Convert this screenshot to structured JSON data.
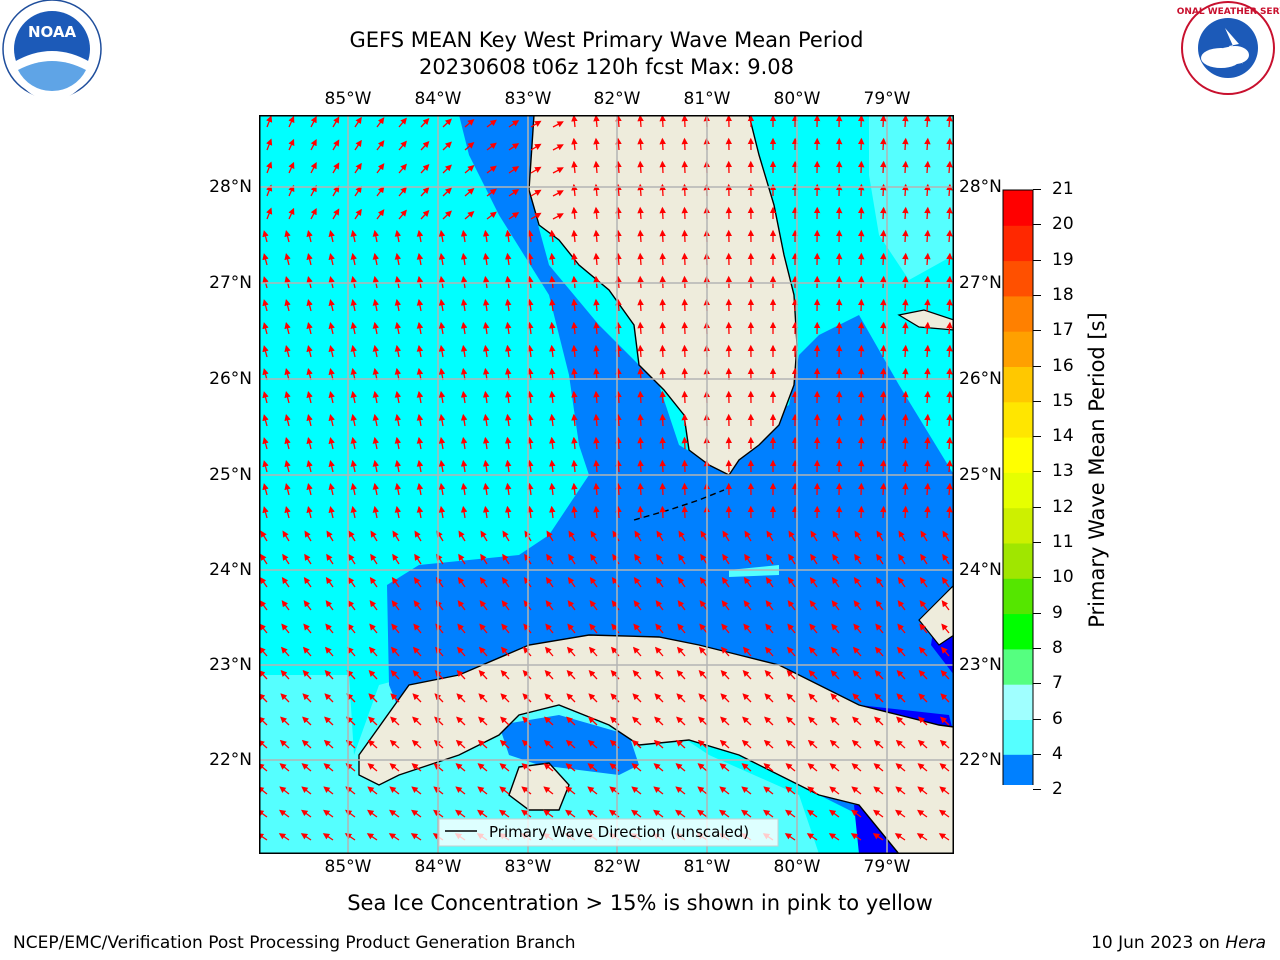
{
  "title": {
    "line1": "GEFS MEAN Key West Primary Wave Mean Period",
    "line2": "20230608 t06z 120h fcst   Max: 9.08"
  },
  "logos": {
    "left": "NOAA",
    "right": "NATIONAL WEATHER SERVICE"
  },
  "map": {
    "lon_labels": [
      "85°W",
      "84°W",
      "83°W",
      "82°W",
      "81°W",
      "80°W",
      "79°W"
    ],
    "lat_labels": [
      "28°N",
      "27°N",
      "26°N",
      "25°N",
      "24°N",
      "23°N",
      "22°N"
    ],
    "legend_text": "Primary Wave Direction (unscaled)",
    "colors": {
      "land": "#eeecdc",
      "cyan": "#00ffff",
      "light_cyan": "#55ffff",
      "blue": "#0080ff",
      "dark_blue": "#0000ff",
      "arrow": "#ff0000",
      "grid": "#b4b4b4"
    }
  },
  "colorbar": {
    "label": "Primary Wave Mean Period [s]",
    "ticks": [
      "2",
      "4",
      "6",
      "7",
      "8",
      "9",
      "10",
      "11",
      "12",
      "13",
      "14",
      "15",
      "16",
      "17",
      "18",
      "19",
      "20",
      "21"
    ],
    "colors": [
      "#0080ff",
      "#00ffff",
      "#55ffff",
      "#a0ffff",
      "#55ff80",
      "#00ff00",
      "#55e600",
      "#a0e600",
      "#cdf000",
      "#e6ff00",
      "#ffff00",
      "#ffe600",
      "#ffc800",
      "#ffa000",
      "#ff8000",
      "#ff5000",
      "#ff2800",
      "#ff0000"
    ],
    "under_color": "#0000ff"
  },
  "footer": {
    "sea_ice_note": "Sea Ice Concentration > 15% is shown in pink to yellow",
    "branch": "NCEP/EMC/Verification Post Processing Product Generation Branch",
    "date": "10 Jun 2023 on ",
    "machine": "Hera"
  }
}
